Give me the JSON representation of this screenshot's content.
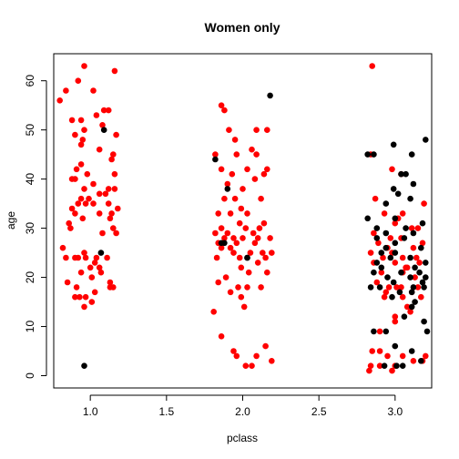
{
  "chart_data": {
    "type": "scatter",
    "title": "Women only",
    "xlabel": "pclass",
    "ylabel": "age",
    "xlim": [
      0.76,
      3.24
    ],
    "ylim": [
      -2.5,
      65.5
    ],
    "x_ticks": [
      "1.0",
      "1.5",
      "2.0",
      "2.5",
      "3.0"
    ],
    "y_ticks": [
      "0",
      "10",
      "20",
      "30",
      "40",
      "50",
      "60"
    ],
    "grid": false,
    "series": [
      {
        "color": "#ff0000",
        "points": [
          [
            0.96,
            63
          ],
          [
            1.16,
            62
          ],
          [
            0.84,
            58
          ],
          [
            1.02,
            58
          ],
          [
            0.92,
            60
          ],
          [
            0.8,
            56
          ],
          [
            0.88,
            52
          ],
          [
            0.94,
            52
          ],
          [
            1.12,
            54
          ],
          [
            1.09,
            54
          ],
          [
            1.04,
            53
          ],
          [
            1.08,
            51
          ],
          [
            0.96,
            50
          ],
          [
            0.9,
            49
          ],
          [
            0.95,
            48
          ],
          [
            1.17,
            49
          ],
          [
            0.94,
            47
          ],
          [
            1.06,
            46
          ],
          [
            1.15,
            45
          ],
          [
            0.94,
            43
          ],
          [
            0.91,
            42
          ],
          [
            1.14,
            44
          ],
          [
            0.98,
            41
          ],
          [
            1.16,
            41
          ],
          [
            0.88,
            40
          ],
          [
            0.9,
            40
          ],
          [
            1.02,
            39
          ],
          [
            0.96,
            38
          ],
          [
            1.12,
            38
          ],
          [
            1.16,
            38
          ],
          [
            1.1,
            37
          ],
          [
            1.06,
            37
          ],
          [
            0.94,
            36
          ],
          [
            0.99,
            36
          ],
          [
            0.92,
            35
          ],
          [
            0.97,
            35
          ],
          [
            1.02,
            35
          ],
          [
            1.12,
            35
          ],
          [
            0.88,
            34
          ],
          [
            0.9,
            33
          ],
          [
            1.06,
            33
          ],
          [
            1.18,
            34
          ],
          [
            1.14,
            33
          ],
          [
            0.86,
            31
          ],
          [
            0.95,
            32
          ],
          [
            1.13,
            32
          ],
          [
            0.87,
            30
          ],
          [
            1.15,
            30
          ],
          [
            1.17,
            29
          ],
          [
            1.08,
            29
          ],
          [
            0.82,
            26
          ],
          [
            0.96,
            25
          ],
          [
            1.11,
            24
          ],
          [
            0.84,
            24
          ],
          [
            0.9,
            24
          ],
          [
            0.92,
            24
          ],
          [
            0.97,
            24
          ],
          [
            1.04,
            24
          ],
          [
            1.06,
            22
          ],
          [
            1.03,
            23
          ],
          [
            1.0,
            22
          ],
          [
            0.94,
            21
          ],
          [
            1.07,
            21
          ],
          [
            0.85,
            19
          ],
          [
            0.91,
            18
          ],
          [
            1.13,
            18
          ],
          [
            1.15,
            18
          ],
          [
            1.13,
            19
          ],
          [
            0.9,
            16
          ],
          [
            0.93,
            16
          ],
          [
            0.97,
            16
          ],
          [
            1.01,
            15
          ],
          [
            0.96,
            14
          ],
          [
            1.03,
            17
          ],
          [
            1.01,
            20
          ],
          [
            1.86,
            55
          ],
          [
            1.88,
            54
          ],
          [
            1.91,
            50
          ],
          [
            1.95,
            48
          ],
          [
            2.09,
            50
          ],
          [
            2.16,
            50
          ],
          [
            1.82,
            45
          ],
          [
            1.96,
            45
          ],
          [
            2.06,
            46
          ],
          [
            2.09,
            45
          ],
          [
            1.86,
            42
          ],
          [
            1.93,
            41
          ],
          [
            2.03,
            42
          ],
          [
            2.14,
            41
          ],
          [
            2.16,
            42
          ],
          [
            1.9,
            39
          ],
          [
            2.08,
            40
          ],
          [
            2.0,
            38
          ],
          [
            1.88,
            36
          ],
          [
            1.95,
            36
          ],
          [
            2.12,
            36
          ],
          [
            1.99,
            34
          ],
          [
            1.92,
            33
          ],
          [
            2.03,
            33
          ],
          [
            1.84,
            33
          ],
          [
            1.98,
            31
          ],
          [
            1.86,
            30
          ],
          [
            2.14,
            31
          ],
          [
            2.11,
            30
          ],
          [
            1.82,
            29
          ],
          [
            1.9,
            29
          ],
          [
            2.02,
            30
          ],
          [
            2.07,
            29
          ],
          [
            1.88,
            28
          ],
          [
            1.94,
            28
          ],
          [
            2.0,
            28
          ],
          [
            2.1,
            28
          ],
          [
            2.18,
            28
          ],
          [
            1.84,
            27
          ],
          [
            1.96,
            27
          ],
          [
            1.86,
            26
          ],
          [
            1.92,
            26
          ],
          [
            2.08,
            27
          ],
          [
            1.83,
            24
          ],
          [
            1.94,
            25
          ],
          [
            2.05,
            25
          ],
          [
            2.13,
            25
          ],
          [
            2.19,
            25
          ],
          [
            2.15,
            24
          ],
          [
            1.98,
            24
          ],
          [
            2.1,
            23
          ],
          [
            1.99,
            22
          ],
          [
            2.04,
            21
          ],
          [
            1.89,
            20
          ],
          [
            2.16,
            21
          ],
          [
            1.84,
            19
          ],
          [
            2.12,
            18
          ],
          [
            1.97,
            18
          ],
          [
            2.03,
            18
          ],
          [
            1.92,
            17
          ],
          [
            1.99,
            16
          ],
          [
            2.01,
            14
          ],
          [
            1.81,
            13
          ],
          [
            1.86,
            8
          ],
          [
            2.15,
            6
          ],
          [
            1.94,
            5
          ],
          [
            1.96,
            4
          ],
          [
            2.09,
            4
          ],
          [
            2.19,
            3
          ],
          [
            2.02,
            2
          ],
          [
            2.06,
            2
          ],
          [
            2.85,
            63
          ],
          [
            2.84,
            45
          ],
          [
            2.87,
            36
          ],
          [
            2.98,
            42
          ],
          [
            3.04,
            41
          ],
          [
            3.19,
            35
          ],
          [
            2.93,
            33
          ],
          [
            3.02,
            32
          ],
          [
            2.86,
            29
          ],
          [
            3.0,
            31
          ],
          [
            3.04,
            28
          ],
          [
            3.15,
            30
          ],
          [
            2.89,
            27
          ],
          [
            3.18,
            27
          ],
          [
            2.95,
            26
          ],
          [
            3.12,
            26
          ],
          [
            2.84,
            25
          ],
          [
            2.98,
            25
          ],
          [
            2.92,
            24
          ],
          [
            3.05,
            24
          ],
          [
            3.14,
            24
          ],
          [
            3.0,
            23
          ],
          [
            3.07,
            22
          ],
          [
            3.16,
            23
          ],
          [
            2.91,
            21
          ],
          [
            3.08,
            22
          ],
          [
            3.05,
            21
          ],
          [
            2.88,
            19
          ],
          [
            2.96,
            18
          ],
          [
            3.01,
            18
          ],
          [
            3.15,
            18
          ],
          [
            2.94,
            17
          ],
          [
            3.05,
            16
          ],
          [
            2.93,
            16
          ],
          [
            3.08,
            14
          ],
          [
            3.1,
            13
          ],
          [
            3.0,
            12
          ],
          [
            2.9,
            9
          ],
          [
            3.0,
            11
          ],
          [
            2.85,
            5
          ],
          [
            2.9,
            5
          ],
          [
            2.95,
            4
          ],
          [
            3.05,
            4
          ],
          [
            3.18,
            3
          ],
          [
            3.2,
            4
          ],
          [
            3.12,
            3
          ],
          [
            2.84,
            2
          ],
          [
            2.9,
            2
          ],
          [
            2.98,
            1
          ],
          [
            2.83,
            1
          ],
          [
            3.0,
            2
          ],
          [
            3.04,
            18
          ],
          [
            3.13,
            20
          ],
          [
            3.05,
            33
          ],
          [
            3.11,
            30
          ],
          [
            2.97,
            28
          ],
          [
            3.17,
            16
          ],
          [
            3.11,
            17
          ],
          [
            2.86,
            23
          ]
        ]
      },
      {
        "color": "#000000",
        "points": [
          [
            1.09,
            50
          ],
          [
            1.07,
            25
          ],
          [
            0.96,
            2
          ],
          [
            2.18,
            57
          ],
          [
            1.82,
            44
          ],
          [
            1.9,
            38
          ],
          [
            1.88,
            27
          ],
          [
            1.86,
            27
          ],
          [
            2.03,
            24
          ],
          [
            2.03,
            24
          ],
          [
            2.82,
            45
          ],
          [
            2.86,
            45
          ],
          [
            2.99,
            47
          ],
          [
            3.2,
            48
          ],
          [
            3.11,
            45
          ],
          [
            3.04,
            41
          ],
          [
            3.07,
            41
          ],
          [
            3.12,
            39
          ],
          [
            2.99,
            38
          ],
          [
            3.02,
            37
          ],
          [
            3.1,
            36
          ],
          [
            2.94,
            35
          ],
          [
            3.0,
            32
          ],
          [
            3.07,
            30
          ],
          [
            3.18,
            31
          ],
          [
            2.82,
            32
          ],
          [
            2.88,
            30
          ],
          [
            2.94,
            29
          ],
          [
            3.12,
            29
          ],
          [
            2.88,
            28
          ],
          [
            3.06,
            28
          ],
          [
            3.0,
            27
          ],
          [
            2.94,
            26
          ],
          [
            3.17,
            26
          ],
          [
            2.91,
            25
          ],
          [
            3.0,
            25
          ],
          [
            2.97,
            24
          ],
          [
            3.1,
            24
          ],
          [
            3.2,
            23
          ],
          [
            2.88,
            23
          ],
          [
            3.13,
            22
          ],
          [
            2.91,
            22
          ],
          [
            2.86,
            21
          ],
          [
            3.04,
            21
          ],
          [
            3.16,
            21
          ],
          [
            3.2,
            20
          ],
          [
            2.95,
            20
          ],
          [
            3.1,
            20
          ],
          [
            2.99,
            19
          ],
          [
            3.18,
            19
          ],
          [
            2.84,
            18
          ],
          [
            2.9,
            18
          ],
          [
            3.12,
            18
          ],
          [
            3.19,
            18
          ],
          [
            3.03,
            17
          ],
          [
            3.11,
            17
          ],
          [
            2.98,
            16
          ],
          [
            3.13,
            15
          ],
          [
            3.11,
            14
          ],
          [
            3.06,
            12
          ],
          [
            3.19,
            11
          ],
          [
            2.86,
            9
          ],
          [
            2.94,
            9
          ],
          [
            3.21,
            9
          ],
          [
            3.0,
            6
          ],
          [
            3.11,
            5
          ],
          [
            2.93,
            2
          ],
          [
            3.01,
            2
          ],
          [
            3.05,
            2
          ],
          [
            3.17,
            3
          ]
        ]
      }
    ]
  }
}
